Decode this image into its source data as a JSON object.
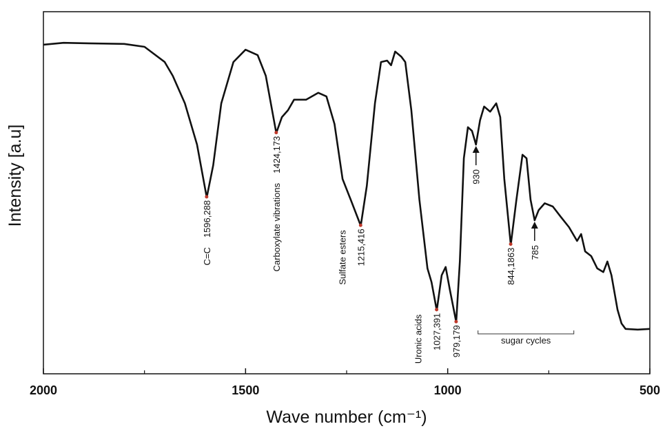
{
  "chart_data": {
    "type": "line",
    "xlabel": "Wave number (cm⁻¹)",
    "ylabel": "Intensity [a.u]",
    "color": "#111111",
    "xlim": [
      2000,
      500
    ],
    "xticks": [
      2000,
      1500,
      1000,
      500
    ],
    "xticks_minor": [
      1750,
      1250,
      750
    ],
    "ylim": [
      0,
      100
    ],
    "x": [
      2000,
      1950,
      1900,
      1800,
      1750,
      1700,
      1680,
      1650,
      1620,
      1596,
      1580,
      1560,
      1530,
      1500,
      1470,
      1450,
      1424,
      1410,
      1395,
      1380,
      1350,
      1320,
      1300,
      1280,
      1260,
      1240,
      1215,
      1200,
      1180,
      1165,
      1150,
      1140,
      1130,
      1115,
      1105,
      1090,
      1070,
      1050,
      1040,
      1027,
      1015,
      1005,
      995,
      979,
      970,
      960,
      950,
      940,
      930,
      920,
      910,
      895,
      880,
      870,
      860,
      844,
      830,
      815,
      805,
      795,
      785,
      775,
      760,
      740,
      720,
      700,
      680,
      670,
      660,
      645,
      630,
      615,
      605,
      595,
      580,
      570,
      560,
      530,
      500
    ],
    "values": [
      90.9,
      91.4,
      91.3,
      91.1,
      90.3,
      86.1,
      82.3,
      74.7,
      63.3,
      48.7,
      57.6,
      74.7,
      86.1,
      89.5,
      88,
      82.3,
      66.5,
      70.9,
      72.8,
      75.7,
      75.7,
      77.6,
      76.6,
      69,
      53.8,
      48.1,
      40.9,
      51.9,
      74.7,
      86.1,
      86.5,
      85.2,
      89,
      87.6,
      86.1,
      72.8,
      48.1,
      29.1,
      25.3,
      17.5,
      27.2,
      29.5,
      23.4,
      14.3,
      31,
      59.5,
      68.1,
      67.1,
      63.3,
      70,
      73.8,
      72.4,
      74.7,
      70.9,
      53.8,
      35.6,
      48.1,
      60.5,
      59.5,
      48.1,
      42.4,
      45.2,
      47.1,
      46.2,
      43.3,
      40.5,
      36.7,
      38.6,
      33.8,
      32.5,
      29.1,
      28.1,
      31,
      27.2,
      17.7,
      13.9,
      12.4,
      12.2,
      12.4
    ],
    "annotations": [
      {
        "x": 1596.288,
        "label": "1596,288",
        "note": "C=C",
        "marker": "dot"
      },
      {
        "x": 1424.173,
        "label": "1424,173",
        "note": "Carboxylate vibrations",
        "marker": "dot"
      },
      {
        "x": 1215.416,
        "label": "1215,416",
        "note": "Sulfate esters",
        "marker": "dot"
      },
      {
        "x": 1027.391,
        "label": "1027,391",
        "note": "Uronic acids",
        "marker": "dot"
      },
      {
        "x": 979.179,
        "label": "979,179",
        "marker": "dot"
      },
      {
        "x": 930,
        "label": "930",
        "marker": "arrow"
      },
      {
        "x": 844.1863,
        "label": "844,1863",
        "marker": "dot"
      },
      {
        "x": 785,
        "label": "785",
        "marker": "arrow"
      }
    ],
    "bracket": {
      "label": "sugar cycles",
      "range": [
        925,
        688
      ]
    }
  }
}
